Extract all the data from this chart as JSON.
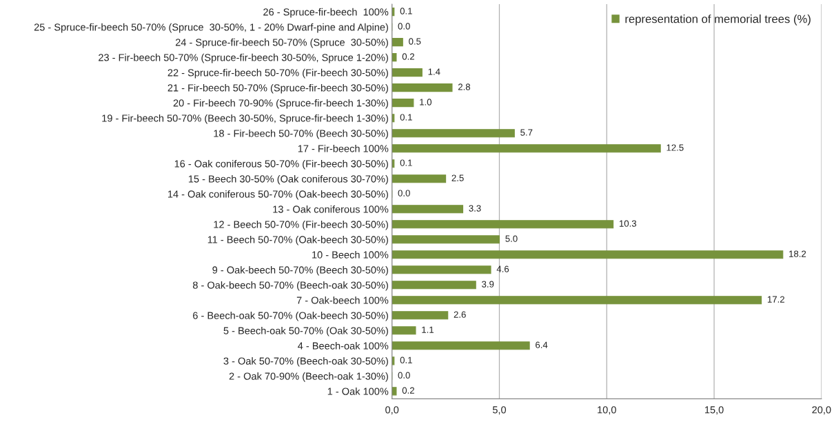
{
  "chart_data": {
    "type": "bar",
    "orientation": "horizontal",
    "categories": [
      "26 - Spruce-fir-beech  100%",
      "25 - Spruce-fir-beech 50-70% (Spruce  30-50%, 1 - 20% Dwarf-pine and Alpine)",
      "24 - Spruce-fir-beech 50-70% (Spruce  30-50%)",
      "23 - Fir-beech 50-70% (Spruce-fir-beech 30-50%, Spruce 1-20%)",
      "22 - Spruce-fir-beech 50-70% (Fir-beech 30-50%)",
      "21 - Fir-beech 50-70% (Spruce-fir-beech 30-50%)",
      "20 - Fir-beech 70-90% (Spruce-fir-beech 1-30%)",
      "19 - Fir-beech 50-70% (Beech 30-50%, Spruce-fir-beech 1-30%)",
      "18 - Fir-beech 50-70% (Beech 30-50%)",
      "17 - Fir-beech 100%",
      "16 - Oak coniferous 50-70% (Fir-beech 30-50%)",
      "15 - Beech 30-50% (Oak coniferous 30-70%)",
      "14 - Oak coniferous 50-70% (Oak-beech 30-50%)",
      "13 - Oak coniferous 100%",
      "12 - Beech 50-70% (Fir-beech 30-50%)",
      "11 - Beech 50-70% (Oak-beech 30-50%)",
      "10 - Beech 100%",
      "9 - Oak-beech 50-70% (Beech 30-50%)",
      "8 - Oak-beech 50-70% (Beech-oak 30-50%)",
      "7 - Oak-beech 100%",
      "6 - Beech-oak 50-70% (Oak-beech 30-50%)",
      "5 - Beech-oak 50-70% (Oak 30-50%)",
      "4 - Beech-oak 100%",
      "3 - Oak 50-70% (Beech-oak 30-50%)",
      "2 - Oak 70-90% (Beech-oak 1-30%)",
      "1 - Oak 100%"
    ],
    "series": [
      {
        "name": "representation of memorial trees (%)",
        "color": "#77933c",
        "values": [
          0.1,
          0.0,
          0.5,
          0.2,
          1.4,
          2.8,
          1.0,
          0.1,
          5.7,
          12.5,
          0.1,
          2.5,
          0.0,
          3.3,
          10.3,
          5.0,
          18.2,
          4.6,
          3.9,
          17.2,
          2.6,
          1.1,
          6.4,
          0.1,
          0.0,
          0.2
        ],
        "value_labels": [
          "0.1",
          "0.0",
          "0.5",
          "0.2",
          "1.4",
          "2.8",
          "1.0",
          "0.1",
          "5.7",
          "12.5",
          "0.1",
          "2.5",
          "0.0",
          "3.3",
          "10.3",
          "5.0",
          "18.2",
          "4.6",
          "3.9",
          "17.2",
          "2.6",
          "1.1",
          "6.4",
          "0.1",
          "0.0",
          "0.2"
        ]
      }
    ],
    "xlim": [
      0,
      20
    ],
    "xticks": [
      {
        "value": 0,
        "label": "0,0"
      },
      {
        "value": 5,
        "label": "5,0"
      },
      {
        "value": 10,
        "label": "10,0"
      },
      {
        "value": 15,
        "label": "15,0"
      },
      {
        "value": 20,
        "label": "20,0"
      }
    ],
    "grid": "x",
    "legend": "top right"
  }
}
